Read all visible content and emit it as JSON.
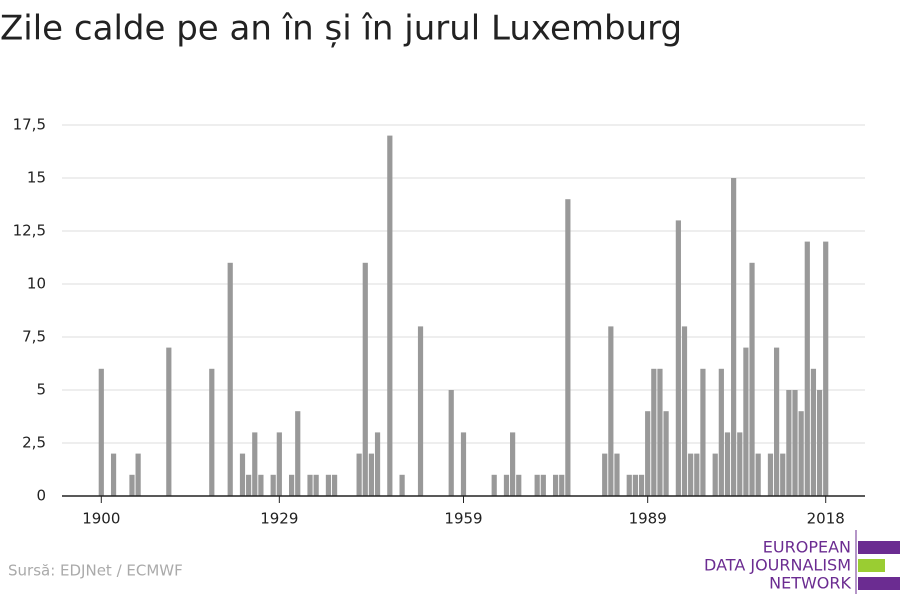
{
  "chart_data": {
    "type": "bar",
    "title": "Zile calde pe an în și în jurul Luxemburg",
    "source": "Sursă: EDJNet / ECMWF",
    "logo": [
      "EUROPEAN",
      "DATA JOURNALISM",
      "NETWORK"
    ],
    "color": "#999999",
    "x": [
      1900,
      1901,
      1902,
      1903,
      1904,
      1905,
      1906,
      1907,
      1908,
      1909,
      1910,
      1911,
      1912,
      1913,
      1914,
      1915,
      1916,
      1917,
      1918,
      1919,
      1920,
      1921,
      1922,
      1923,
      1924,
      1925,
      1926,
      1927,
      1928,
      1929,
      1930,
      1931,
      1932,
      1933,
      1934,
      1935,
      1936,
      1937,
      1938,
      1939,
      1940,
      1941,
      1942,
      1943,
      1944,
      1945,
      1946,
      1947,
      1948,
      1949,
      1950,
      1951,
      1952,
      1953,
      1954,
      1955,
      1956,
      1957,
      1958,
      1959,
      1960,
      1961,
      1962,
      1963,
      1964,
      1965,
      1966,
      1967,
      1968,
      1969,
      1970,
      1971,
      1972,
      1973,
      1974,
      1975,
      1976,
      1977,
      1978,
      1979,
      1980,
      1981,
      1982,
      1983,
      1984,
      1985,
      1986,
      1987,
      1988,
      1989,
      1990,
      1991,
      1992,
      1993,
      1994,
      1995,
      1996,
      1997,
      1998,
      1999,
      2000,
      2001,
      2002,
      2003,
      2004,
      2005,
      2006,
      2007,
      2008,
      2009,
      2010,
      2011,
      2012,
      2013,
      2014,
      2015,
      2016,
      2017,
      2018
    ],
    "values": [
      6,
      0,
      2,
      0,
      0,
      1,
      2,
      0,
      0,
      0,
      0,
      7,
      0,
      0,
      0,
      0,
      0,
      0,
      6,
      0,
      0,
      11,
      0,
      2,
      1,
      3,
      1,
      0,
      1,
      3,
      0,
      1,
      4,
      0,
      1,
      1,
      0,
      1,
      1,
      0,
      0,
      0,
      2,
      11,
      2,
      3,
      0,
      17,
      0,
      1,
      0,
      0,
      8,
      0,
      0,
      0,
      0,
      5,
      0,
      3,
      0,
      0,
      0,
      0,
      1,
      0,
      1,
      3,
      1,
      0,
      0,
      1,
      1,
      0,
      1,
      1,
      14,
      0,
      0,
      0,
      0,
      0,
      2,
      8,
      2,
      0,
      1,
      1,
      1,
      4,
      6,
      6,
      4,
      0,
      13,
      8,
      2,
      2,
      6,
      0,
      2,
      6,
      3,
      15,
      3,
      7,
      11,
      2,
      0,
      2,
      7,
      2,
      5,
      5,
      4,
      12,
      6,
      5,
      12
    ],
    "xlim": [
      1893.6,
      2024.4
    ],
    "xticks": [
      1900,
      1929,
      1959,
      1989,
      2018
    ],
    "ylim": [
      0,
      17.5
    ],
    "yticks": [
      0,
      {
        "value": 2.5,
        "label": "2,5"
      },
      5,
      {
        "value": 7.5,
        "label": "7,5"
      },
      10,
      {
        "value": 12.5,
        "label": "12,5"
      },
      15,
      {
        "value": 17.5,
        "label": "17,5"
      }
    ],
    "grid": true
  }
}
